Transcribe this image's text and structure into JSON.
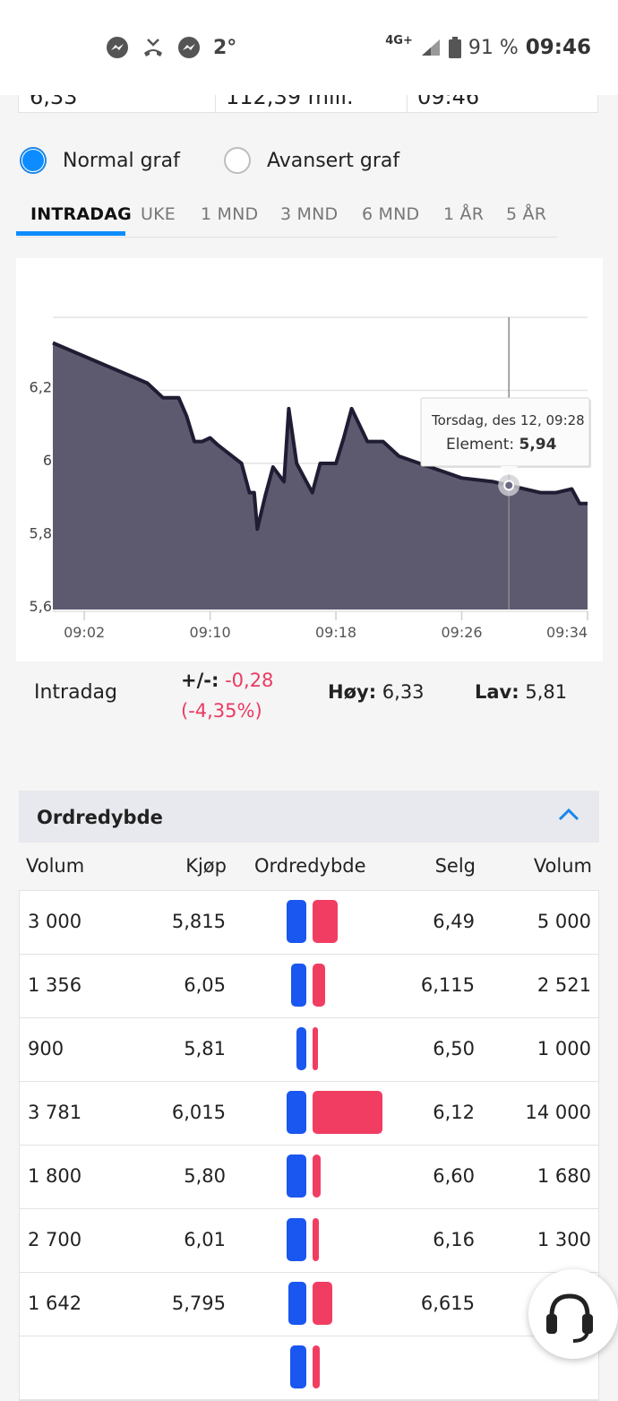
{
  "status_bar": {
    "temperature": "2°",
    "network": "4G+",
    "battery": "91 %",
    "time": "09:46",
    "icons": [
      "messenger-icon",
      "missed-call-icon",
      "messenger-icon"
    ]
  },
  "info_values": [
    "6,33",
    "112,39 mill.",
    "09:46"
  ],
  "chart_mode": {
    "normal_label": "Normal graf",
    "advanced_label": "Avansert graf",
    "selected": "normal"
  },
  "tabs": [
    "INTRADAG",
    "UKE",
    "1 MND",
    "3 MND",
    "6 MND",
    "1 ÅR",
    "5 ÅR"
  ],
  "chart_data": {
    "type": "area",
    "title": "",
    "xlabel": "",
    "ylabel": "",
    "x_ticks": [
      "09:02",
      "09:10",
      "09:18",
      "09:26",
      "09:34"
    ],
    "y_ticks": [
      "5,6",
      "5,8",
      "6",
      "6,2"
    ],
    "ylim": [
      5.6,
      6.4
    ],
    "series": [
      {
        "x": [
          "09:00",
          "09:06",
          "09:07",
          "09:08",
          "09:08.5",
          "09:09",
          "09:09.5",
          "09:10",
          "09:10.5",
          "09:12",
          "09:12.5",
          "09:12.8",
          "09:13",
          "09:13.5",
          "09:14",
          "09:14.7",
          "09:15",
          "09:15.5",
          "09:16",
          "09:16.5",
          "09:17",
          "09:18",
          "09:18.5",
          "09:19",
          "09:20",
          "09:21",
          "09:22",
          "09:24",
          "09:26",
          "09:28",
          "09:29",
          "09:31",
          "09:32",
          "09:33",
          "09:33.5",
          "09:34"
        ],
        "values": [
          6.33,
          6.22,
          6.18,
          6.18,
          6.13,
          6.06,
          6.06,
          6.07,
          6.05,
          6.0,
          5.92,
          5.92,
          5.82,
          5.91,
          5.99,
          5.95,
          6.15,
          6.0,
          5.96,
          5.92,
          6.0,
          6.0,
          6.07,
          6.15,
          6.06,
          6.06,
          6.02,
          5.99,
          5.96,
          5.95,
          5.94,
          5.92,
          5.92,
          5.93,
          5.89,
          5.89
        ]
      }
    ],
    "tooltip": {
      "date": "Torsdag, des 12, 09:28",
      "label": "Element:",
      "value": "5,94"
    }
  },
  "stats": {
    "label": "Intradag",
    "change_key": "+/-:",
    "change_value": "-0,28",
    "change_pct": "(-4,35%)",
    "high_key": "Høy:",
    "high_value": "6,33",
    "low_key": "Lav:",
    "low_value": "5,81"
  },
  "order_depth": {
    "title": "Ordredybde",
    "columns": [
      "Volum",
      "Kjøp",
      "Ordredybde",
      "Selg",
      "Volum"
    ],
    "rows": [
      {
        "buy_vol": "3 000",
        "buy": "5,815",
        "sell": "6,49",
        "sell_vol": "5 000",
        "buy_bar": 3000,
        "sell_bar": 5000
      },
      {
        "buy_vol": "1 356",
        "buy": "6,05",
        "sell": "6,115",
        "sell_vol": "2 521",
        "buy_bar": 1356,
        "sell_bar": 2521
      },
      {
        "buy_vol": "900",
        "buy": "5,81",
        "sell": "6,50",
        "sell_vol": "1 000",
        "buy_bar": 900,
        "sell_bar": 1000
      },
      {
        "buy_vol": "3 781",
        "buy": "6,015",
        "sell": "6,12",
        "sell_vol": "14 000",
        "buy_bar": 3781,
        "sell_bar": 14000
      },
      {
        "buy_vol": "1 800",
        "buy": "5,80",
        "sell": "6,60",
        "sell_vol": "1 680",
        "buy_bar": 1800,
        "sell_bar": 1680
      },
      {
        "buy_vol": "2 700",
        "buy": "6,01",
        "sell": "6,16",
        "sell_vol": "1 300",
        "buy_bar": 2700,
        "sell_bar": 1300
      },
      {
        "buy_vol": "1 642",
        "buy": "5,795",
        "sell": "6,615",
        "sell_vol": "4 000",
        "buy_bar": 1642,
        "sell_bar": 4000
      },
      {
        "buy_vol": "",
        "buy": "",
        "sell": "",
        "sell_vol": "",
        "buy_bar": 1500,
        "sell_bar": 1500
      }
    ]
  }
}
